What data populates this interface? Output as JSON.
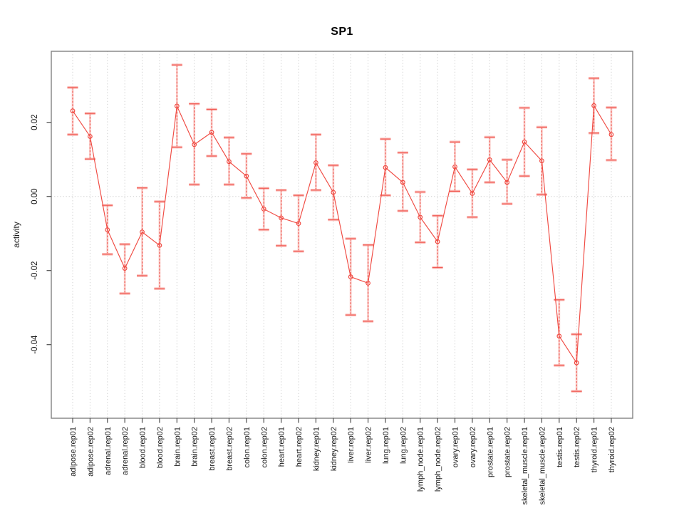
{
  "page": {
    "background": "#ffffff"
  },
  "chart_data": {
    "type": "line",
    "title": "SP1",
    "xlabel": "",
    "ylabel": "activity",
    "legend": "none",
    "grid_vertical_every_category": true,
    "grid_horizontal_values": [
      0
    ],
    "ylim": [
      -0.0599,
      0.0392
    ],
    "yticks": [
      {
        "label": "0.02",
        "value": 0.02
      },
      {
        "label": "0.00",
        "value": 0.0
      },
      {
        "label": "-0.02",
        "value": -0.02
      },
      {
        "label": "-0.04",
        "value": -0.04
      }
    ],
    "categories": [
      "adipose.rep01",
      "adipose.rep02",
      "adrenal.rep01",
      "adrenal.rep02",
      "blood.rep01",
      "blood.rep02",
      "brain.rep01",
      "brain.rep02",
      "breast.rep01",
      "breast.rep02",
      "colon.rep01",
      "colon.rep02",
      "heart.rep01",
      "heart.rep02",
      "kidney.rep01",
      "kidney.rep02",
      "liver.rep01",
      "liver.rep02",
      "lung.rep01",
      "lung.rep02",
      "lymph_node.rep01",
      "lymph_node.rep02",
      "ovary.rep01",
      "ovary.rep02",
      "prostate.rep01",
      "prostate.rep02",
      "skeletal_muscle.rep01",
      "skeletal_muscle.rep02",
      "testis.rep01",
      "testis.rep02",
      "thyroid.rep01",
      "thyroid.rep02"
    ],
    "series": [
      {
        "name": "SP1 activity",
        "marker": "open-circle",
        "values": [
          0.0231,
          0.0162,
          -0.009,
          -0.0194,
          -0.0096,
          -0.0132,
          0.0244,
          0.014,
          0.0173,
          0.0094,
          0.0055,
          -0.0034,
          -0.0058,
          -0.0073,
          0.0091,
          0.0011,
          -0.0217,
          -0.0234,
          0.0078,
          0.0038,
          -0.0056,
          -0.0122,
          0.008,
          0.0008,
          0.0099,
          0.0038,
          0.0147,
          0.0096,
          -0.0377,
          -0.0449,
          0.0245,
          0.0167
        ],
        "lower": [
          0.0167,
          0.0101,
          -0.0156,
          -0.0262,
          -0.0214,
          -0.0249,
          0.0133,
          0.0032,
          0.0109,
          0.0032,
          -0.0004,
          -0.009,
          -0.0133,
          -0.0148,
          0.0017,
          -0.0063,
          -0.032,
          -0.0337,
          0.0003,
          -0.0039,
          -0.0124,
          -0.0192,
          0.0014,
          -0.0056,
          0.0038,
          -0.002,
          0.0055,
          0.0005,
          -0.0456,
          -0.0526,
          0.0171,
          0.0098
        ],
        "upper": [
          0.0294,
          0.0224,
          -0.0024,
          -0.0129,
          0.0023,
          -0.0014,
          0.0355,
          0.025,
          0.0235,
          0.0159,
          0.0115,
          0.0022,
          0.0017,
          0.0003,
          0.0167,
          0.0084,
          -0.0114,
          -0.0131,
          0.0155,
          0.0118,
          0.0012,
          -0.0052,
          0.0147,
          0.0073,
          0.016,
          0.0099,
          0.0239,
          0.0187,
          -0.0279,
          -0.0372,
          0.0319,
          0.024
        ]
      }
    ],
    "colors": {
      "series": "#f04a42",
      "series_light": "#f9aca7",
      "grid": "#cfcfcf",
      "box": "#828282",
      "tick": "#4d4d4d",
      "text": "#1a1a1a"
    }
  }
}
